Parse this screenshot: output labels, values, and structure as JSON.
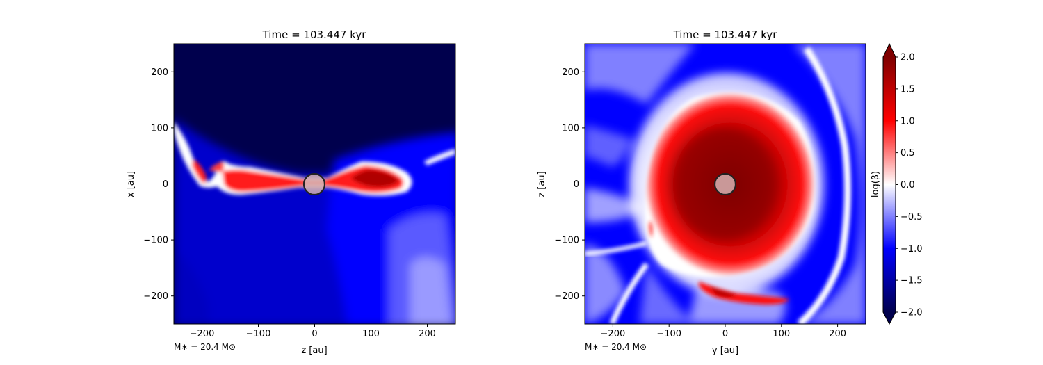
{
  "chart_data": [
    {
      "type": "heatmap",
      "title": "Time = 103.447 kyr",
      "xlabel": "z [au]",
      "ylabel": "x [au]",
      "xlim": [
        -250,
        250
      ],
      "ylim": [
        -250,
        250
      ],
      "xticks": [
        -200,
        -100,
        0,
        100,
        200
      ],
      "yticks": [
        -200,
        -100,
        0,
        100,
        200
      ],
      "xtick_labels": [
        "−200",
        "−100",
        "0",
        "100",
        "200"
      ],
      "ytick_labels": [
        "−200",
        "−100",
        "0",
        "100",
        "200"
      ],
      "annotation": "M∗ = 20.4 M⊙",
      "sink": {
        "x": 0,
        "y": 0,
        "radius": 18
      },
      "field": "log(β)"
    },
    {
      "type": "heatmap",
      "title": "Time = 103.447 kyr",
      "xlabel": "y [au]",
      "ylabel": "z [au]",
      "xlim": [
        -250,
        250
      ],
      "ylim": [
        -250,
        250
      ],
      "xticks": [
        -200,
        -100,
        0,
        100,
        200
      ],
      "yticks": [
        -200,
        -100,
        0,
        100,
        200
      ],
      "xtick_labels": [
        "−200",
        "−100",
        "0",
        "100",
        "200"
      ],
      "ytick_labels": [
        "−200",
        "−100",
        "0",
        "100",
        "200"
      ],
      "annotation": "M∗ = 20.4 M⊙",
      "sink": {
        "x": 0,
        "y": 0,
        "radius": 18
      },
      "field": "log(β)"
    }
  ],
  "colorbar": {
    "label": "log(β)",
    "range": [
      -2.0,
      2.0
    ],
    "ticks": [
      2.0,
      1.5,
      1.0,
      0.5,
      0.0,
      -0.5,
      -1.0,
      -1.5,
      -2.0
    ],
    "tick_labels": [
      "2.0",
      "1.5",
      "1.0",
      "0.5",
      "0.0",
      "−0.5",
      "−1.0",
      "−1.5",
      "−2.0"
    ],
    "colormap": "seismic",
    "extend": "both"
  },
  "colors": {
    "dark_blue": "#00004d",
    "blue": "#0000ff",
    "white": "#ffffff",
    "red": "#ff0000",
    "dark_red": "#7f0000",
    "sink_fill": "#d6b3b3"
  }
}
